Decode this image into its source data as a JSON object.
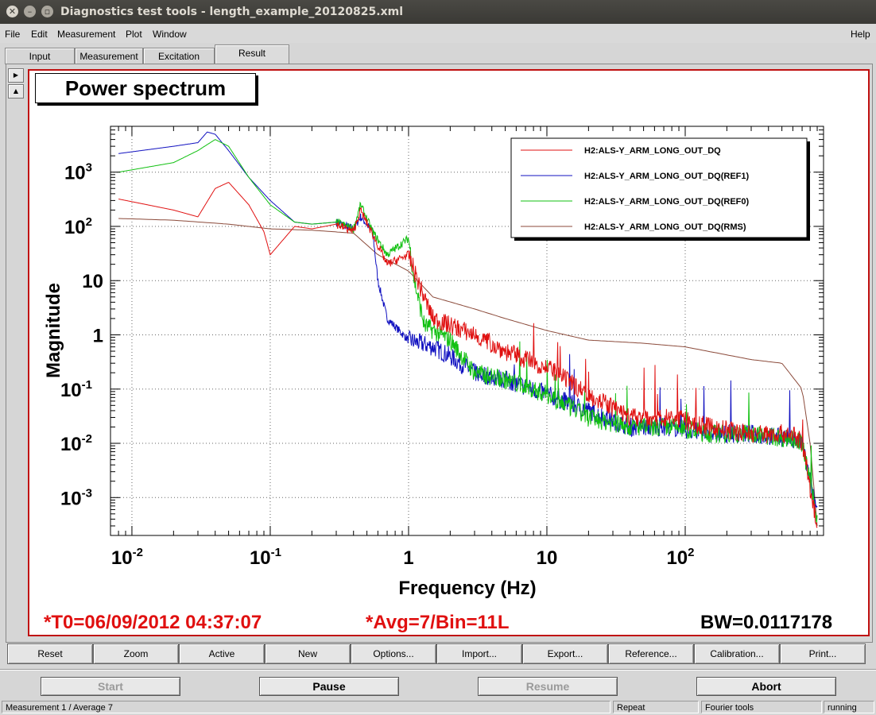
{
  "window": {
    "title": "Diagnostics test tools - length_example_20120825.xml",
    "controls": [
      "close-icon",
      "minimize-icon",
      "maximize-icon"
    ]
  },
  "menu": {
    "file": "File",
    "edit": "Edit",
    "measurement": "Measurement",
    "plot": "Plot",
    "window": "Window",
    "help": "Help"
  },
  "tabs": [
    {
      "label": "Input"
    },
    {
      "label": "Measurement"
    },
    {
      "label": "Excitation"
    },
    {
      "label": "Result",
      "active": true
    }
  ],
  "plot": {
    "title_box": "Power spectrum",
    "stats": {
      "t0": "*T0=06/09/2012 04:37:07",
      "avg": "*Avg=7/Bin=11L",
      "bw": "BW=0.0117178"
    }
  },
  "chart_data": {
    "type": "line",
    "title": "",
    "xlabel": "Frequency (Hz)",
    "ylabel": "Magnitude",
    "xscale": "log",
    "yscale": "log",
    "xlim": [
      0.007,
      1000
    ],
    "ylim": [
      0.0002,
      7000
    ],
    "grid": true,
    "legend_position": "top-right",
    "x_ticks": [
      {
        "base": "10",
        "exp": "-2",
        "value": 0.01
      },
      {
        "base": "10",
        "exp": "-1",
        "value": 0.1
      },
      {
        "base": "1",
        "exp": "",
        "value": 1
      },
      {
        "base": "10",
        "exp": "",
        "value": 10
      },
      {
        "base": "10",
        "exp": "2",
        "value": 100
      }
    ],
    "y_ticks": [
      {
        "base": "10",
        "exp": "3",
        "value": 1000
      },
      {
        "base": "10",
        "exp": "2",
        "value": 100
      },
      {
        "base": "10",
        "exp": "",
        "value": 10
      },
      {
        "base": "1",
        "exp": "",
        "value": 1
      },
      {
        "base": "10",
        "exp": "-1",
        "value": 0.1
      },
      {
        "base": "10",
        "exp": "-2",
        "value": 0.01
      },
      {
        "base": "10",
        "exp": "-3",
        "value": 0.001
      }
    ],
    "series": [
      {
        "name": "H2:ALS-Y_ARM_LONG_OUT_DQ(RMS)",
        "color": "#8b4a3a",
        "points": [
          [
            0.008,
            140
          ],
          [
            0.02,
            130
          ],
          [
            0.05,
            110
          ],
          [
            0.1,
            90
          ],
          [
            0.2,
            85
          ],
          [
            0.4,
            75
          ],
          [
            0.6,
            30
          ],
          [
            1,
            15
          ],
          [
            1.5,
            5
          ],
          [
            3,
            3
          ],
          [
            5,
            2
          ],
          [
            10,
            1.2
          ],
          [
            20,
            0.8
          ],
          [
            50,
            0.7
          ],
          [
            100,
            0.6
          ],
          [
            300,
            0.35
          ],
          [
            500,
            0.3
          ],
          [
            700,
            0.1
          ],
          [
            800,
            0.01
          ],
          [
            900,
            0.0003
          ]
        ]
      },
      {
        "name": "H2:ALS-Y_ARM_LONG_OUT_DQ(REF1)",
        "color": "#1010c0",
        "points": [
          [
            0.008,
            2200
          ],
          [
            0.02,
            3000
          ],
          [
            0.03,
            3500
          ],
          [
            0.035,
            5500
          ],
          [
            0.04,
            5000
          ],
          [
            0.05,
            2500
          ],
          [
            0.07,
            800
          ],
          [
            0.1,
            300
          ],
          [
            0.15,
            120
          ],
          [
            0.2,
            110
          ],
          [
            0.3,
            120
          ],
          [
            0.4,
            90
          ],
          [
            0.45,
            150
          ],
          [
            0.55,
            80
          ],
          [
            0.6,
            10
          ],
          [
            0.7,
            2
          ],
          [
            1,
            0.8
          ],
          [
            1.5,
            0.6
          ],
          [
            2,
            0.4
          ],
          [
            3,
            0.2
          ],
          [
            5,
            0.15
          ],
          [
            10,
            0.08
          ],
          [
            20,
            0.04
          ],
          [
            40,
            0.02
          ],
          [
            80,
            0.02
          ],
          [
            150,
            0.015
          ],
          [
            300,
            0.015
          ],
          [
            600,
            0.012
          ],
          [
            700,
            0.01
          ],
          [
            900,
            0.0005
          ]
        ]
      },
      {
        "name": "H2:ALS-Y_ARM_LONG_OUT_DQ(REF0)",
        "color": "#10c010",
        "points": [
          [
            0.008,
            1000
          ],
          [
            0.02,
            1500
          ],
          [
            0.03,
            2500
          ],
          [
            0.04,
            4000
          ],
          [
            0.05,
            3000
          ],
          [
            0.07,
            800
          ],
          [
            0.1,
            250
          ],
          [
            0.15,
            120
          ],
          [
            0.2,
            110
          ],
          [
            0.3,
            120
          ],
          [
            0.4,
            90
          ],
          [
            0.45,
            250
          ],
          [
            0.55,
            80
          ],
          [
            0.7,
            30
          ],
          [
            1,
            60
          ],
          [
            1.1,
            10
          ],
          [
            1.3,
            1.5
          ],
          [
            2,
            0.8
          ],
          [
            3,
            0.2
          ],
          [
            5,
            0.15
          ],
          [
            10,
            0.08
          ],
          [
            20,
            0.03
          ],
          [
            40,
            0.02
          ],
          [
            80,
            0.02
          ],
          [
            150,
            0.015
          ],
          [
            300,
            0.015
          ],
          [
            600,
            0.012
          ],
          [
            700,
            0.01
          ],
          [
            900,
            0.0004
          ]
        ]
      },
      {
        "name": "H2:ALS-Y_ARM_LONG_OUT_DQ",
        "color": "#e01010",
        "points": [
          [
            0.008,
            320
          ],
          [
            0.02,
            200
          ],
          [
            0.03,
            150
          ],
          [
            0.04,
            500
          ],
          [
            0.05,
            650
          ],
          [
            0.07,
            250
          ],
          [
            0.09,
            80
          ],
          [
            0.1,
            30
          ],
          [
            0.15,
            100
          ],
          [
            0.2,
            90
          ],
          [
            0.3,
            110
          ],
          [
            0.4,
            80
          ],
          [
            0.45,
            200
          ],
          [
            0.55,
            70
          ],
          [
            0.7,
            20
          ],
          [
            1,
            30
          ],
          [
            1.2,
            8
          ],
          [
            1.5,
            2
          ],
          [
            2,
            1.5
          ],
          [
            3,
            1
          ],
          [
            5,
            0.5
          ],
          [
            10,
            0.25
          ],
          [
            20,
            0.08
          ],
          [
            40,
            0.03
          ],
          [
            80,
            0.03
          ],
          [
            150,
            0.02
          ],
          [
            300,
            0.015
          ],
          [
            600,
            0.015
          ],
          [
            700,
            0.01
          ],
          [
            900,
            0.0003
          ]
        ]
      }
    ],
    "legend_order": [
      3,
      1,
      2,
      0
    ]
  },
  "buttons": [
    "Reset",
    "Zoom",
    "Active",
    "New",
    "Options...",
    "Import...",
    "Export...",
    "Reference...",
    "Calibration...",
    "Print..."
  ],
  "controls": {
    "start": "Start",
    "pause": "Pause",
    "resume": "Resume",
    "abort": "Abort"
  },
  "status": {
    "measurement": "Measurement 1 / Average 7",
    "repeat": "Repeat",
    "tool": "Fourier tools",
    "state": "running"
  }
}
